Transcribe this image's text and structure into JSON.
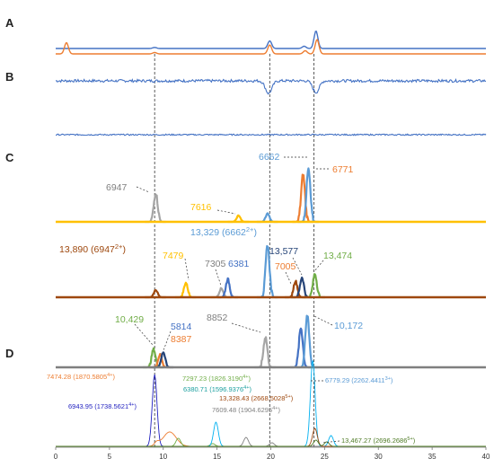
{
  "panel_labels": [
    "A",
    "B",
    "C",
    "D"
  ],
  "colors": {
    "blue": "#4472c4",
    "orange": "#ed7d31",
    "gray": "#a5a5a5",
    "yellow": "#ffc000",
    "brown": "#9e480e",
    "dark_blue": "#264478",
    "green": "#70ad47",
    "light_blue": "#5b9bd5",
    "dark_gray": "#7f7f7f",
    "cyan": "#00b0f0",
    "navy": "#1f1fbf"
  },
  "chart_data": {
    "type": "line",
    "xlim": [
      0,
      40
    ],
    "x_ticks": [
      "0",
      "5",
      "10",
      "15",
      "20",
      "25",
      "30",
      "35",
      "40"
    ],
    "guide_lines_x": [
      9.2,
      19.9,
      24.0
    ],
    "panel_A": {
      "series": [
        {
          "color": "blue",
          "peaks": [
            [
              9.2,
              1.2
            ],
            [
              19.9,
              8.5
            ],
            [
              23.1,
              2.5
            ],
            [
              24.2,
              19.5
            ]
          ]
        },
        {
          "color": "orange",
          "peaks": [
            [
              1.0,
              12.5
            ],
            [
              9.2,
              1.5
            ],
            [
              19.9,
              10.0
            ],
            [
              23.2,
              3.5
            ],
            [
              24.3,
              16.0
            ]
          ]
        }
      ]
    },
    "panel_B": {
      "series": [
        {
          "color": "blue",
          "trace": "upper",
          "dips": [
            [
              19.8,
              14
            ],
            [
              24.2,
              13
            ]
          ]
        },
        {
          "color": "blue",
          "trace": "lower",
          "dips": []
        }
      ]
    },
    "panel_C": {
      "tracks": [
        {
          "baseline_color": "yellow",
          "peaks": [
            {
              "color": "gray",
              "x": 9.3,
              "h": 32
            },
            {
              "color": "yellow",
              "x": 17.0,
              "h": 7
            },
            {
              "color": "light_blue",
              "x": 19.7,
              "h": 9
            },
            {
              "color": "orange",
              "x": 23.0,
              "h": 52
            },
            {
              "color": "light_blue",
              "x": 23.5,
              "h": 58
            }
          ],
          "labels": [
            {
              "text": "6947",
              "color": "dark_gray"
            },
            {
              "text": "7616",
              "color": "yellow"
            },
            {
              "text": "6662",
              "color": "light_blue"
            },
            {
              "text": "6771",
              "color": "orange"
            }
          ]
        },
        {
          "baseline_color": "brown",
          "peaks": [
            {
              "color": "brown",
              "x": 9.3,
              "h": 8
            },
            {
              "color": "yellow",
              "x": 12.1,
              "h": 16
            },
            {
              "color": "gray",
              "x": 15.4,
              "h": 10
            },
            {
              "color": "blue",
              "x": 16.0,
              "h": 20
            },
            {
              "color": "light_blue",
              "x": 19.7,
              "h": 58
            },
            {
              "color": "brown",
              "x": 22.3,
              "h": 18
            },
            {
              "color": "dark_blue",
              "x": 22.9,
              "h": 22
            },
            {
              "color": "green",
              "x": 24.1,
              "h": 26
            }
          ],
          "labels": [
            {
              "text": "13,890 (6947",
              "sup": "2+",
              "tail": ")",
              "color": "brown"
            },
            {
              "text": "7479",
              "color": "yellow"
            },
            {
              "text": "7305",
              "color": "dark_gray"
            },
            {
              "text": "6381",
              "color": "blue"
            },
            {
              "text": "13,329 (6662",
              "sup": "2+",
              "tail": ")",
              "color": "light_blue"
            },
            {
              "text": "13,577",
              "color": "dark_blue"
            },
            {
              "text": "7005",
              "color": "orange"
            },
            {
              "text": "13,474",
              "color": "green"
            }
          ]
        },
        {
          "baseline_color": "dark_gray",
          "peaks": [
            {
              "color": "green",
              "x": 9.1,
              "h": 20
            },
            {
              "color": "orange",
              "x": 9.7,
              "h": 14
            },
            {
              "color": "dark_blue",
              "x": 10.0,
              "h": 17
            },
            {
              "color": "gray",
              "x": 19.5,
              "h": 34
            },
            {
              "color": "blue",
              "x": 22.8,
              "h": 44
            },
            {
              "color": "light_blue",
              "x": 23.4,
              "h": 58
            }
          ],
          "labels": [
            {
              "text": "10,429",
              "color": "green"
            },
            {
              "text": "5814",
              "color": "blue"
            },
            {
              "text": "8387",
              "color": "orange"
            },
            {
              "text": "8852",
              "color": "dark_gray"
            },
            {
              "text": "10,172",
              "color": "light_blue"
            }
          ]
        }
      ]
    },
    "panel_D": {
      "series": [
        {
          "color": "navy",
          "peaks": [
            [
              9.2,
              80
            ]
          ]
        },
        {
          "color": "orange",
          "peaks": [
            [
              10.6,
              16
            ],
            [
              9.4,
              4
            ]
          ]
        },
        {
          "color": "green",
          "peaks": [
            [
              11.4,
              9
            ],
            [
              14.6,
              3
            ]
          ]
        },
        {
          "color": "cyan",
          "peaks": [
            [
              14.9,
              27
            ],
            [
              23.9,
              96
            ],
            [
              25.6,
              12
            ]
          ]
        },
        {
          "color": "dark_gray",
          "peaks": [
            [
              17.7,
              10
            ],
            [
              20.1,
              4
            ]
          ]
        },
        {
          "color": "brown",
          "peaks": [
            [
              24.1,
              20
            ]
          ]
        },
        {
          "color": "dark_green",
          "peaks": [
            [
              24.2,
              7
            ],
            [
              25.2,
              5
            ]
          ]
        }
      ],
      "labels": [
        {
          "text": "7474.28 (1870.5805",
          "sup": "4+",
          "tail": ")",
          "color": "orange"
        },
        {
          "text": "7297.23 (1826.3190",
          "sup": "4+",
          "tail": ")",
          "color": "green"
        },
        {
          "text": "6380.71 (1596.9376",
          "sup": "4+",
          "tail": ")",
          "color": "teal"
        },
        {
          "text": "13,328.43 (2668.5028",
          "sup": "5+",
          "tail": ")",
          "color": "brown"
        },
        {
          "text": "6779.29 (2262.4411",
          "sup": "3+",
          "tail": ")",
          "color": "light_blue"
        },
        {
          "text": "7609.48 (1904.6295",
          "sup": "4+",
          "tail": ")",
          "color": "dark_gray"
        },
        {
          "text": "6943.95 (1738.5621",
          "sup": "4+",
          "tail": ")",
          "color": "navy"
        },
        {
          "text": "13,467.27 (2696.2686",
          "sup": "5+",
          "tail": ")",
          "color": "dark_green"
        }
      ]
    }
  }
}
